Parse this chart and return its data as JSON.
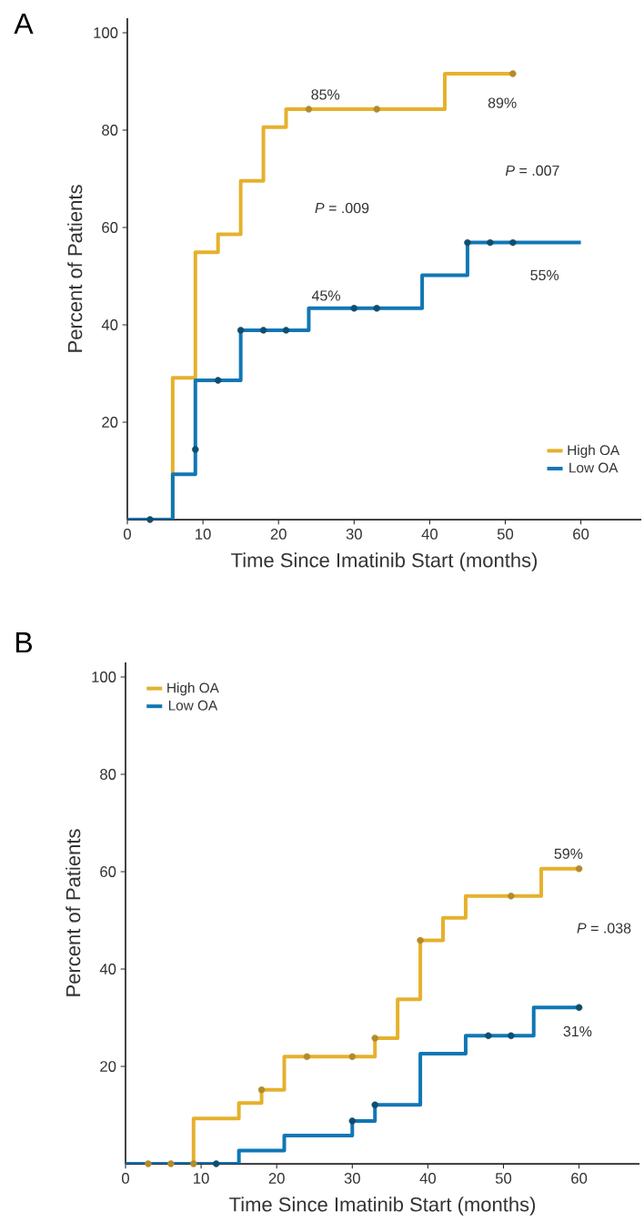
{
  "chart_data": [
    {
      "type": "step",
      "title": "A",
      "xlabel": "Time Since Imatinib Start (months)",
      "ylabel": "Percent of Patients",
      "xlim": [
        0,
        68
      ],
      "ylim": [
        0,
        103
      ],
      "xticks": [
        0,
        10,
        20,
        30,
        40,
        50,
        60
      ],
      "yticks": [
        20,
        40,
        60,
        80,
        100
      ],
      "legend": "bottom right",
      "series": [
        {
          "name": "High OA",
          "marker": "none",
          "color": "#e5b12d",
          "x": [
            0,
            6,
            9,
            12,
            15,
            18,
            21,
            42,
            51
          ],
          "values": [
            0,
            29.1,
            54.9,
            58.6,
            69.6,
            80.6,
            84.3,
            91.6,
            91.6
          ]
        },
        {
          "name": "Low OA",
          "marker": "none",
          "color": "#1077b5",
          "x": [
            0,
            6,
            9,
            15,
            24,
            39,
            45,
            60
          ],
          "values": [
            0,
            9.3,
            28.6,
            38.9,
            43.4,
            50.2,
            56.9,
            56.9
          ]
        },
        {
          "type": "scatter",
          "marker": "circle",
          "color": "#b38b2b",
          "x": [
            24,
            33,
            51
          ],
          "values": [
            84.3,
            84.3,
            91.6
          ]
        },
        {
          "type": "scatter",
          "marker": "circle",
          "color": "#114d6d",
          "x": [
            3,
            9,
            12,
            15,
            18,
            21,
            30,
            33,
            45,
            48,
            51
          ],
          "values": [
            0,
            14.4,
            28.6,
            38.9,
            38.9,
            38.9,
            43.4,
            43.4,
            56.9,
            56.9,
            56.9
          ]
        }
      ],
      "annotations": [
        "*P* = .009",
        "*P* = .007",
        {
          "text": "85%",
          "x": 24,
          "y": 84.3
        },
        {
          "text": "89%",
          "x": 51,
          "y": 91.6
        },
        {
          "text": "45%",
          "x": 24,
          "y": 43.4
        },
        {
          "text": "55%",
          "x": 60,
          "y": 56.9
        }
      ]
    },
    {
      "type": "step",
      "title": "B",
      "xlabel": "Time Since Imatinib Start (months)",
      "ylabel": "Percent of Patients",
      "xlim": [
        0,
        68
      ],
      "ylim": [
        0,
        103
      ],
      "xticks": [
        0,
        10,
        20,
        30,
        40,
        50,
        60
      ],
      "yticks": [
        20,
        40,
        60,
        80,
        100
      ],
      "legend": "top left",
      "series": [
        {
          "name": "High OA",
          "marker": "none",
          "color": "#e5b12d",
          "x": [
            0,
            9,
            15,
            18,
            21,
            33,
            36,
            39,
            42,
            45,
            55,
            60
          ],
          "values": [
            0,
            9.3,
            12.5,
            15.2,
            22,
            25.8,
            33.8,
            45.9,
            50.5,
            55,
            60.6,
            60.6
          ]
        },
        {
          "name": "Low OA",
          "marker": "none",
          "color": "#1077b5",
          "x": [
            0,
            15,
            21,
            30,
            33,
            39,
            45,
            54,
            60
          ],
          "values": [
            0,
            2.7,
            5.8,
            8.8,
            12.1,
            22.6,
            26.3,
            32.1,
            32.1
          ]
        },
        {
          "type": "scatter",
          "marker": "circle",
          "color": "#b38b2b",
          "x": [
            3,
            6,
            9,
            18,
            24,
            30,
            33,
            39,
            51,
            60
          ],
          "values": [
            0,
            0,
            0,
            15.2,
            22,
            22,
            25.8,
            45.9,
            55,
            60.6
          ]
        },
        {
          "type": "scatter",
          "marker": "circle",
          "color": "#114d6d",
          "x": [
            12,
            30,
            33,
            48,
            51,
            60
          ],
          "values": [
            0,
            8.8,
            12.1,
            26.3,
            26.3,
            32.1
          ]
        }
      ],
      "annotations": [
        "*P* = .038",
        {
          "text": "59%",
          "x": 60,
          "y": 60.6
        },
        {
          "text": "31%",
          "x": 60,
          "y": 32.1
        }
      ]
    }
  ]
}
